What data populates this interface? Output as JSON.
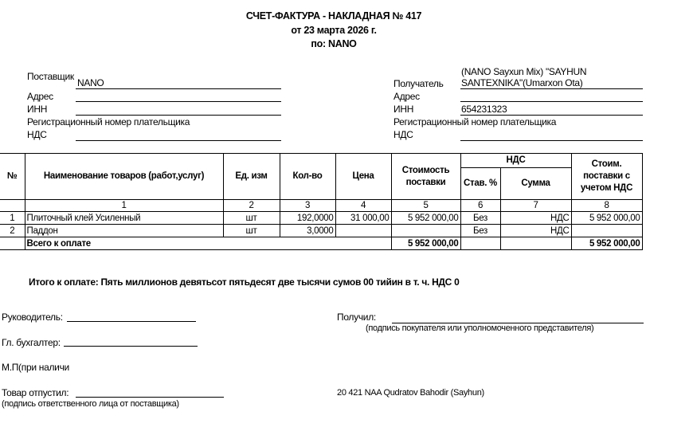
{
  "header": {
    "title": "СЧЕТ-ФАКТУРА - НАКЛАДНАЯ № 417",
    "date": "от 23 марта 2026 г.",
    "by": "по: NANO"
  },
  "supplier": {
    "label": "Поставщик",
    "value": "NANO",
    "address_label": "Адрес",
    "inn_label": "ИНН",
    "reg_label": "Регистрационный номер плательщика",
    "vat_label": "НДС"
  },
  "recipient": {
    "label": "Получатель",
    "value_line1": "(NANO Sayxun Mix) \"SAYHUN",
    "value_line2": "SANTEXNIKA\"(Umarxon Ota)",
    "address_label": "Адрес",
    "inn_label": "ИНН",
    "inn_value": "654231323",
    "reg_label": "Регистрационный номер плательщика",
    "vat_label": "НДС"
  },
  "table": {
    "headers": {
      "no": "№",
      "name": "Наименование товаров (работ,услуг)",
      "unit": "Ед. изм",
      "qty": "Кол-во",
      "price": "Цена",
      "cost": "Стоимость поставки",
      "vat": "НДС",
      "vat_rate": "Став. %",
      "vat_sum": "Сумма",
      "total": "Стоим. поставки с учетом НДС"
    },
    "col_numbers": [
      "1",
      "2",
      "3",
      "4",
      "5",
      "6",
      "7",
      "8"
    ],
    "rows": [
      {
        "no": "1",
        "name": "Плиточный клей Усиленный",
        "unit": "шт",
        "qty": "192,0000",
        "price": "31 000,00",
        "cost": "5 952 000,00",
        "vat_rate": "Без",
        "vat_sum": "НДС",
        "total": "5 952 000,00"
      },
      {
        "no": "2",
        "name": "Паддон",
        "unit": "шт",
        "qty": "3,0000",
        "price": "",
        "cost": "",
        "vat_rate": "Без",
        "vat_sum": "НДС",
        "total": ""
      }
    ],
    "footer": {
      "label": "Всего к оплате",
      "cost": "5 952 000,00",
      "total": "5 952 000,00"
    }
  },
  "total_words": "Итого к оплате: Пять миллионов девятьсот пятьдесят две тысячи сумов 00 тийин  в т. ч. НДС 0",
  "signatures": {
    "director": "Руководитель:",
    "accountant": "Гл. бухгалтер:",
    "stamp": "М.П(при наличи",
    "released": "Товар  отпустил:",
    "released_note": "(подпись ответственного лица от поставщика)",
    "received": "Получил:",
    "received_note": "(подпись покупателя или уполномоченного представителя)",
    "agent": "20 421 NAA Qudratov Bahodir (Sayhun)"
  }
}
